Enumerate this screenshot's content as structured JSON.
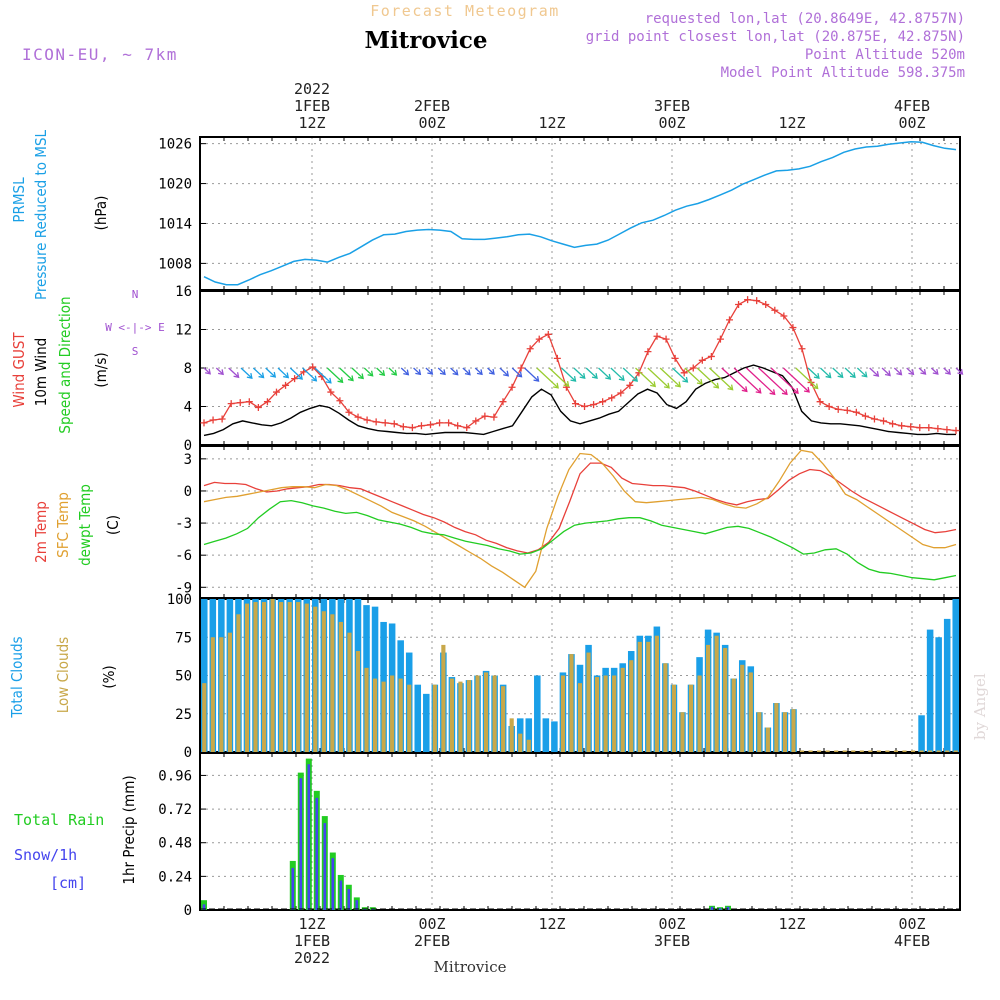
{
  "header": {
    "title": "Mitrovice",
    "subtitle": "Forecast Meteogram",
    "model": "ICON-EU, ~ 7km",
    "requested": "requested lon,lat (20.8649E, 42.8757N)",
    "grid": "grid point closest lon,lat (20.875E, 42.875N)",
    "point_alt": "Point Altitude 520m",
    "model_alt": "Model Point Altitude 598.375m",
    "watermark": "by Angel",
    "bottom_label": "Mitrovice"
  },
  "colors": {
    "pressure": "#1aa0e6",
    "gust": "#e8403a",
    "wind": "#000000",
    "green": "#22cc22",
    "sfc": "#e0a030",
    "dewpt": "#22cc22",
    "total_clouds": "#1a9fe8",
    "low_clouds": "#c8a84a",
    "purple": "#a050d0",
    "title_orange": "#f0c890",
    "snow": "#4444ee"
  },
  "time_axis": {
    "hours_start": 0,
    "hours_end": 95,
    "top_ticks": [
      {
        "h": 14,
        "lines": [
          "2022",
          "1FEB",
          "12Z"
        ]
      },
      {
        "h": 29,
        "lines": [
          "2FEB",
          "00Z"
        ]
      },
      {
        "h": 44,
        "lines": [
          "12Z"
        ]
      },
      {
        "h": 59,
        "lines": [
          "3FEB",
          "00Z"
        ]
      },
      {
        "h": 74,
        "lines": [
          "12Z"
        ]
      },
      {
        "h": 89,
        "lines": [
          "4FEB",
          "00Z"
        ]
      }
    ],
    "bottom_ticks": [
      {
        "h": 14,
        "lines": [
          "12Z",
          "1FEB",
          "2022"
        ]
      },
      {
        "h": 29,
        "lines": [
          "00Z",
          "2FEB"
        ]
      },
      {
        "h": 44,
        "lines": [
          "12Z"
        ]
      },
      {
        "h": 59,
        "lines": [
          "00Z",
          "3FEB"
        ]
      },
      {
        "h": 74,
        "lines": [
          "12Z"
        ]
      },
      {
        "h": 89,
        "lines": [
          "00Z",
          "4FEB"
        ]
      }
    ]
  },
  "chart_data": [
    {
      "type": "line",
      "id": "pressure",
      "ylabel_lines": [
        "PRMSL",
        "Pressure Reduced to MSL"
      ],
      "unit": "(hPa)",
      "ylim": [
        1004,
        1027
      ],
      "yticks": [
        1008,
        1014,
        1020,
        1026
      ],
      "series": [
        {
          "name": "PRMSL",
          "values": [
            1006.0,
            1005.2,
            1004.8,
            1004.8,
            1005.5,
            1006.3,
            1006.9,
            1007.6,
            1008.3,
            1008.6,
            1008.5,
            1008.2,
            1008.9,
            1009.5,
            1010.5,
            1011.5,
            1012.3,
            1012.4,
            1012.8,
            1013.0,
            1013.1,
            1013.0,
            1012.8,
            1011.7,
            1011.6,
            1011.6,
            1011.8,
            1012.0,
            1012.3,
            1012.4,
            1012.0,
            1011.4,
            1010.9,
            1010.4,
            1010.7,
            1010.9,
            1011.5,
            1012.4,
            1013.3,
            1014.1,
            1014.5,
            1015.2,
            1016.0,
            1016.6,
            1017.0,
            1017.6,
            1018.3,
            1019.0,
            1019.9,
            1020.6,
            1021.3,
            1021.9,
            1022.0,
            1022.2,
            1022.6,
            1023.3,
            1023.9,
            1024.7,
            1025.2,
            1025.5,
            1025.6,
            1025.9,
            1026.1,
            1026.3,
            1026.2,
            1025.7,
            1025.3,
            1025.1
          ]
        }
      ]
    },
    {
      "type": "line",
      "id": "wind",
      "ylabel_lines": [
        "Wind GUST",
        "10m Wind",
        "Speed and Direction"
      ],
      "unit": "(m/s)",
      "ylim": [
        0,
        16
      ],
      "yticks": [
        0,
        4,
        8,
        12,
        16
      ],
      "compass": [
        "N",
        "W <-|-> E",
        "S"
      ],
      "series": [
        {
          "name": "Wind GUST",
          "values": [
            2.3,
            2.6,
            2.7,
            4.3,
            4.4,
            4.5,
            3.9,
            4.5,
            5.5,
            6.2,
            6.9,
            7.6,
            8.1,
            7.1,
            5.5,
            4.6,
            3.4,
            2.9,
            2.6,
            2.4,
            2.3,
            2.2,
            1.9,
            1.8,
            2.0,
            2.1,
            2.3,
            2.3,
            2.0,
            1.8,
            2.5,
            3.0,
            2.9,
            4.5,
            6.0,
            8.0,
            10.0,
            11.0,
            11.5,
            9.0,
            6.0,
            4.3,
            4.0,
            4.2,
            4.5,
            4.9,
            5.4,
            6.2,
            7.5,
            9.7,
            11.3,
            11.0,
            9.0,
            7.5,
            8.0,
            8.8,
            9.2,
            11.0,
            13.0,
            14.6,
            15.1,
            15.0,
            14.6,
            14.0,
            13.4,
            12.2,
            10.0,
            6.5,
            4.5,
            4.0,
            3.7,
            3.6,
            3.4,
            3.0,
            2.7,
            2.5,
            2.2,
            2.0,
            1.9,
            1.8,
            1.8,
            1.7,
            1.6,
            1.5
          ]
        },
        {
          "name": "10m Wind",
          "values": [
            1.0,
            1.2,
            1.6,
            2.2,
            2.5,
            2.3,
            2.1,
            2.0,
            2.3,
            2.8,
            3.4,
            3.8,
            4.1,
            3.9,
            3.3,
            2.6,
            2.0,
            1.7,
            1.5,
            1.4,
            1.3,
            1.2,
            1.2,
            1.1,
            1.2,
            1.3,
            1.3,
            1.3,
            1.2,
            1.1,
            1.4,
            1.7,
            2.0,
            3.5,
            5.0,
            5.8,
            5.2,
            3.5,
            2.5,
            2.2,
            2.5,
            2.8,
            3.2,
            3.5,
            4.4,
            5.3,
            5.8,
            5.4,
            4.2,
            3.8,
            4.5,
            5.8,
            6.4,
            6.8,
            7.0,
            7.5,
            8.0,
            8.3,
            8.0,
            7.6,
            7.2,
            6.0,
            3.5,
            2.5,
            2.3,
            2.2,
            2.2,
            2.1,
            2.0,
            1.8,
            1.6,
            1.4,
            1.3,
            1.2,
            1.1,
            1.1,
            1.2,
            1.1,
            1.1
          ]
        }
      ]
    },
    {
      "type": "line",
      "id": "temperature",
      "ylabel_lines": [
        "2m Temp",
        "SFC Temp",
        "dewpt Temp"
      ],
      "unit": "(C)",
      "ylim": [
        -10,
        4.2
      ],
      "yticks": [
        3,
        0,
        -3,
        -6,
        -9
      ],
      "series": [
        {
          "name": "2m Temp",
          "values": [
            0.5,
            0.8,
            0.7,
            0.7,
            0.6,
            0.2,
            -0.1,
            0.0,
            0.2,
            0.3,
            0.4,
            0.6,
            0.6,
            0.5,
            0.3,
            0.2,
            -0.2,
            -0.6,
            -1.0,
            -1.4,
            -1.8,
            -2.2,
            -2.5,
            -2.9,
            -3.4,
            -3.8,
            -4.1,
            -4.6,
            -4.9,
            -5.3,
            -5.6,
            -5.8,
            -5.5,
            -4.8,
            -3.5,
            -1.0,
            1.6,
            2.6,
            2.6,
            2.2,
            1.2,
            0.7,
            0.6,
            0.5,
            0.5,
            0.4,
            0.3,
            0.0,
            -0.4,
            -0.8,
            -1.1,
            -1.3,
            -1.0,
            -0.8,
            -0.7,
            0.1,
            1.0,
            1.6,
            2.0,
            1.9,
            1.4,
            0.7,
            0.0,
            -0.6,
            -1.1,
            -1.6,
            -2.1,
            -2.6,
            -3.1,
            -3.6,
            -3.9,
            -3.8,
            -3.6
          ]
        },
        {
          "name": "SFC Temp",
          "values": [
            -1.0,
            -0.8,
            -0.6,
            -0.5,
            -0.3,
            -0.1,
            0.1,
            0.3,
            0.4,
            0.4,
            0.3,
            0.6,
            0.5,
            0.1,
            -0.4,
            -0.9,
            -1.4,
            -2.0,
            -2.4,
            -2.8,
            -3.3,
            -3.9,
            -4.5,
            -5.1,
            -5.7,
            -6.3,
            -7.0,
            -7.6,
            -8.3,
            -9.0,
            -7.5,
            -3.5,
            -0.5,
            2.0,
            3.5,
            3.4,
            2.6,
            1.4,
            0.0,
            -1.0,
            -1.1,
            -1.0,
            -0.9,
            -0.8,
            -0.7,
            -0.6,
            -0.8,
            -1.2,
            -1.5,
            -1.6,
            -1.2,
            -0.6,
            0.9,
            2.6,
            3.8,
            3.6,
            2.5,
            1.2,
            -0.3,
            -0.8,
            -1.5,
            -2.2,
            -2.9,
            -3.6,
            -4.3,
            -5.0,
            -5.3,
            -5.3,
            -5.0
          ]
        },
        {
          "name": "dewpt Temp",
          "values": [
            -5.0,
            -4.7,
            -4.4,
            -4.0,
            -3.5,
            -2.5,
            -1.7,
            -1.0,
            -0.9,
            -1.1,
            -1.4,
            -1.6,
            -1.9,
            -2.1,
            -2.0,
            -2.3,
            -2.7,
            -2.9,
            -3.1,
            -3.4,
            -3.8,
            -4.0,
            -4.1,
            -4.4,
            -4.7,
            -4.9,
            -5.1,
            -5.4,
            -5.6,
            -5.9,
            -5.8,
            -5.4,
            -4.6,
            -3.8,
            -3.2,
            -3.0,
            -2.9,
            -2.8,
            -2.6,
            -2.5,
            -2.5,
            -2.8,
            -3.2,
            -3.4,
            -3.6,
            -3.8,
            -4.0,
            -3.7,
            -3.4,
            -3.3,
            -3.5,
            -3.9,
            -4.3,
            -4.8,
            -5.3,
            -5.9,
            -5.8,
            -5.5,
            -5.4,
            -5.9,
            -6.7,
            -7.3,
            -7.6,
            -7.7,
            -7.9,
            -8.1,
            -8.2,
            -8.3,
            -8.1,
            -7.9
          ]
        }
      ]
    },
    {
      "type": "bar",
      "id": "clouds",
      "ylabel_lines": [
        "Total Clouds",
        "Low Clouds"
      ],
      "unit": "(%)",
      "ylim": [
        0,
        100
      ],
      "yticks": [
        0,
        25,
        50,
        75,
        100
      ],
      "series": [
        {
          "name": "Total Clouds",
          "values": [
            100,
            100,
            100,
            100,
            100,
            100,
            100,
            100,
            100,
            100,
            100,
            100,
            100,
            100,
            100,
            100,
            100,
            100,
            100,
            96,
            95,
            85,
            84,
            73,
            65,
            44,
            38,
            44,
            65,
            49,
            45,
            47,
            50,
            53,
            50,
            44,
            17,
            22,
            22,
            50,
            22,
            20,
            52,
            64,
            57,
            70,
            50,
            55,
            55,
            58,
            66,
            76,
            76,
            82,
            58,
            44,
            26,
            44,
            62,
            80,
            78,
            70,
            48,
            60,
            56,
            26,
            16,
            32,
            26,
            28,
            0,
            0,
            0,
            0,
            0,
            0,
            0,
            0,
            0,
            0,
            0,
            0,
            0,
            0,
            24,
            80,
            75,
            87,
            100
          ]
        },
        {
          "name": "Low Clouds",
          "values": [
            45,
            75,
            75,
            78,
            90,
            97,
            98,
            98,
            100,
            98,
            98,
            98,
            97,
            95,
            92,
            90,
            85,
            78,
            66,
            55,
            48,
            46,
            50,
            48,
            44,
            0,
            0,
            44,
            70,
            48,
            46,
            47,
            50,
            52,
            50,
            43,
            22,
            12,
            8,
            0,
            0,
            0,
            50,
            64,
            45,
            65,
            49,
            50,
            50,
            55,
            60,
            72,
            72,
            76,
            58,
            44,
            26,
            44,
            50,
            70,
            76,
            68,
            48,
            57,
            52,
            26,
            16,
            32,
            26,
            28,
            1,
            1,
            1,
            1,
            1,
            1,
            1,
            1,
            1,
            1,
            1,
            1,
            1,
            1,
            1,
            1,
            1,
            1,
            1
          ]
        }
      ]
    },
    {
      "type": "bar",
      "id": "precip",
      "ylabel_lines": [
        "1hr Precip (mm)"
      ],
      "unit": "",
      "legend_lines": [
        "Total Rain",
        "Snow/1h",
        "[cm]"
      ],
      "ylim": [
        0,
        1.12
      ],
      "yticks": [
        0,
        0.24,
        0.48,
        0.72,
        0.96
      ],
      "series": [
        {
          "name": "Total Rain",
          "values": [
            0.07,
            0,
            0,
            0,
            0,
            0,
            0.35,
            0.98,
            1.08,
            0.85,
            0.67,
            0.41,
            0.25,
            0.18,
            0.09,
            0.02,
            0.02
          ]
        },
        {
          "name": "Snow/1h",
          "values": [
            0.04,
            0,
            0,
            0,
            0,
            0,
            0.3,
            0.94,
            1.04,
            0.8,
            0.62,
            0.37,
            0.21,
            0.15,
            0.07,
            0.01,
            0.01
          ]
        }
      ],
      "late_bars": [
        0.03,
        0.02,
        0.03
      ]
    }
  ]
}
